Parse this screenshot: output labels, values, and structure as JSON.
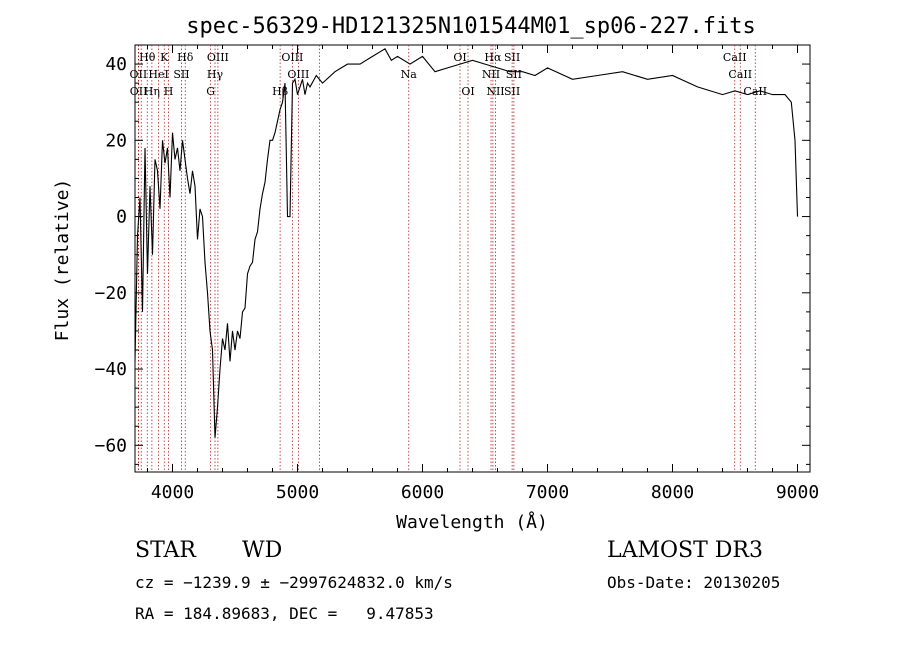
{
  "chart_data": {
    "type": "line",
    "title": "spec-56329-HD121325N101544M01_sp06-227.fits",
    "xlabel": "Wavelength (Å)",
    "ylabel": "Flux (relative)",
    "xlim": [
      3700,
      9100
    ],
    "ylim": [
      -67,
      45
    ],
    "x_ticks": [
      4000,
      5000,
      6000,
      7000,
      8000,
      9000
    ],
    "x_tick_labels": [
      "4000",
      "5000",
      "6000",
      "7000",
      "8000",
      "9000"
    ],
    "y_ticks": [
      -60,
      -40,
      -20,
      0,
      20,
      40
    ],
    "y_tick_labels": [
      "−60",
      "−40",
      "−20",
      "0",
      "20",
      "40"
    ],
    "grid": false,
    "series": [
      {
        "color": "#000000",
        "x": [
          3700,
          3720,
          3740,
          3760,
          3780,
          3800,
          3820,
          3840,
          3860,
          3880,
          3900,
          3920,
          3940,
          3960,
          3980,
          4000,
          4020,
          4040,
          4060,
          4080,
          4100,
          4120,
          4140,
          4160,
          4180,
          4200,
          4220,
          4240,
          4260,
          4280,
          4300,
          4320,
          4340,
          4360,
          4380,
          4400,
          4420,
          4440,
          4460,
          4480,
          4500,
          4520,
          4540,
          4560,
          4580,
          4600,
          4620,
          4640,
          4660,
          4680,
          4700,
          4720,
          4740,
          4760,
          4780,
          4800,
          4820,
          4840,
          4860,
          4880,
          4900,
          4920,
          4940,
          4960,
          4980,
          5000,
          5020,
          5040,
          5060,
          5080,
          5100,
          5150,
          5200,
          5300,
          5400,
          5500,
          5600,
          5700,
          5750,
          5800,
          5900,
          6000,
          6100,
          6200,
          6300,
          6400,
          6500,
          6600,
          6700,
          6800,
          6900,
          7000,
          7200,
          7400,
          7600,
          7800,
          8000,
          8200,
          8400,
          8500,
          8600,
          8700,
          8800,
          8900,
          8950,
          8980,
          9000
        ],
        "y": [
          -38,
          -5,
          5,
          -25,
          18,
          -15,
          8,
          -10,
          15,
          12,
          2,
          20,
          14,
          18,
          5,
          22,
          15,
          18,
          12,
          20,
          15,
          10,
          6,
          12,
          8,
          -6,
          2,
          0,
          -12,
          -20,
          -30,
          -35,
          -58,
          -50,
          -40,
          -32,
          -35,
          -28,
          -38,
          -30,
          -35,
          -30,
          -32,
          -25,
          -24,
          -15,
          -13,
          -12,
          -6,
          -4,
          2,
          6,
          9,
          15,
          20,
          20,
          22,
          25,
          28,
          30,
          35,
          0,
          0,
          35,
          36,
          32,
          34,
          36,
          32,
          35,
          34,
          37,
          35,
          38,
          40,
          40,
          42,
          44,
          41,
          42,
          40,
          42,
          38,
          39,
          40,
          41,
          40,
          39,
          38,
          38,
          37,
          39,
          36,
          37,
          38,
          36,
          37,
          34,
          32,
          33,
          32,
          33,
          32,
          32,
          30,
          20,
          0
        ]
      }
    ],
    "line_markers": [
      {
        "label": "Hθ",
        "wavelength": 3798,
        "row": 0
      },
      {
        "label": "K",
        "wavelength": 3934,
        "row": 0
      },
      {
        "label": "Hδ",
        "wavelength": 4102,
        "row": 0
      },
      {
        "label": "OIII",
        "wavelength": 4363,
        "row": 0
      },
      {
        "label": "OIII",
        "wavelength": 4959,
        "row": 0
      },
      {
        "label": "OI",
        "wavelength": 6300,
        "row": 0
      },
      {
        "label": "Hα",
        "wavelength": 6563,
        "row": 0
      },
      {
        "label": "SII",
        "wavelength": 6717,
        "row": 0
      },
      {
        "label": "CaII",
        "wavelength": 8498,
        "row": 0
      },
      {
        "label": "OII",
        "wavelength": 3727,
        "row": 1
      },
      {
        "label": "HeI",
        "wavelength": 3889,
        "row": 1
      },
      {
        "label": "SII",
        "wavelength": 4072,
        "row": 1
      },
      {
        "label": "Hγ",
        "wavelength": 4340,
        "row": 1
      },
      {
        "label": "OIII",
        "wavelength": 5007,
        "row": 1
      },
      {
        "label": "Na",
        "wavelength": 5890,
        "row": 1
      },
      {
        "label": "NII",
        "wavelength": 6548,
        "row": 1
      },
      {
        "label": "SII",
        "wavelength": 6731,
        "row": 1
      },
      {
        "label": "CaII",
        "wavelength": 8542,
        "row": 1
      },
      {
        "label": "OII",
        "wavelength": 3729,
        "row": 2
      },
      {
        "label": "Hη",
        "wavelength": 3835,
        "row": 2
      },
      {
        "label": "H",
        "wavelength": 3968,
        "row": 2
      },
      {
        "label": "G",
        "wavelength": 4305,
        "row": 2
      },
      {
        "label": "Hβ",
        "wavelength": 4861,
        "row": 2
      },
      {
        "label": "OI",
        "wavelength": 6364,
        "row": 2
      },
      {
        "label": "NII",
        "wavelength": 6584,
        "row": 2
      },
      {
        "label": "SII",
        "wavelength": 6717,
        "row": 2
      },
      {
        "label": "CaII",
        "wavelength": 8662,
        "row": 2
      }
    ],
    "extra_line_positions": [
      3750,
      3798,
      3889,
      4102,
      4305,
      4340,
      4861,
      4959,
      5175,
      5890,
      6300,
      6364,
      6548,
      6563,
      6584,
      6717,
      6731,
      8498,
      8542,
      8662
    ]
  },
  "footer": {
    "object_class": "STAR",
    "subclass": "WD",
    "survey": "LAMOST DR3",
    "cz_line": "cz = −1239.9 ± −2997624832.0 km/s",
    "obs_date": "Obs-Date: 20130205",
    "radec_line": "RA = 184.89683, DEC =   9.47853"
  },
  "colors": {
    "spectrum": "#000000",
    "marker_lines": "#b22222",
    "axes": "#000000",
    "background": "#ffffff"
  }
}
